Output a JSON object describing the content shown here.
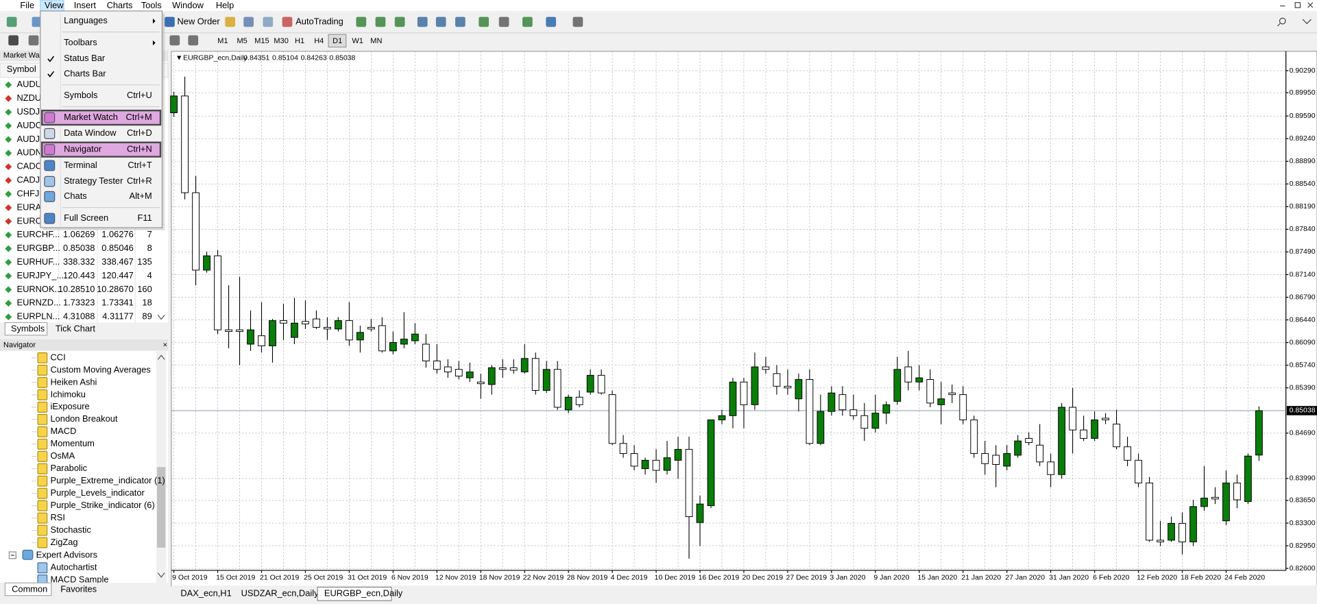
{
  "menu_bar": [
    "File",
    "View",
    "Insert",
    "Charts",
    "Tools",
    "Window",
    "Help"
  ],
  "toolbar": {
    "new_order": "New Order",
    "autotrading": "AutoTrading",
    "timeframes": [
      "M1",
      "M5",
      "M15",
      "M30",
      "H1",
      "H4",
      "D1",
      "W1",
      "MN"
    ]
  },
  "view_menu": [
    {
      "label": "Languages",
      "submenu": true
    },
    {
      "label": "Toolbars",
      "submenu": true
    },
    {
      "label": "Status Bar",
      "checked": true
    },
    {
      "label": "Charts Bar",
      "checked": true
    },
    {
      "label": "Symbols",
      "shortcut": "Ctrl+U"
    },
    {
      "label": "Market Watch",
      "shortcut": "Ctrl+M",
      "highlighted": true
    },
    {
      "label": "Data Window",
      "shortcut": "Ctrl+D"
    },
    {
      "label": "Navigator",
      "shortcut": "Ctrl+N",
      "highlighted": true
    },
    {
      "label": "Terminal",
      "shortcut": "Ctrl+T"
    },
    {
      "label": "Strategy Tester",
      "shortcut": "Ctrl+R"
    },
    {
      "label": "Chats",
      "shortcut": "Alt+M"
    },
    {
      "label": "Full Screen",
      "shortcut": "F11"
    }
  ],
  "market_watch": {
    "title": "Market Wa",
    "column": "Symbol",
    "rows": [
      {
        "cells": [
          "AUDU"
        ],
        "icon": "up"
      },
      {
        "cells": [
          "NZDU"
        ],
        "icon": "down"
      },
      {
        "cells": [
          "USDJP"
        ],
        "icon": "up"
      },
      {
        "cells": [
          "AUDC"
        ],
        "icon": "up"
      },
      {
        "cells": [
          "AUDJP"
        ],
        "icon": "up"
      },
      {
        "cells": [
          "AUDN"
        ],
        "icon": "up"
      },
      {
        "cells": [
          "CADC"
        ],
        "icon": "down"
      },
      {
        "cells": [
          "CADJP"
        ],
        "icon": "down"
      },
      {
        "cells": [
          "CHFJP"
        ],
        "icon": "up"
      },
      {
        "cells": [
          "EURAU"
        ],
        "icon": "down"
      },
      {
        "cells": [
          "EURCA"
        ],
        "icon": "down"
      },
      {
        "cells": [
          "EURCHF...",
          "1.06269",
          "1.06276",
          "7"
        ],
        "icon": "up"
      },
      {
        "cells": [
          "EURGBP...",
          "0.85038",
          "0.85046",
          "8"
        ],
        "icon": "up"
      },
      {
        "cells": [
          "EURHUF...",
          "338.332",
          "338.467",
          "135"
        ],
        "icon": "up"
      },
      {
        "cells": [
          "EURJPY_...",
          "120.443",
          "120.447",
          "4"
        ],
        "icon": "up"
      },
      {
        "cells": [
          "EURNOK...",
          "10.28510",
          "10.28670",
          "160"
        ],
        "icon": "up"
      },
      {
        "cells": [
          "EURNZD...",
          "1.73323",
          "1.73341",
          "18"
        ],
        "icon": "up"
      },
      {
        "cells": [
          "EURPLN...",
          "4.31088",
          "4.31177",
          "89"
        ],
        "icon": "up"
      }
    ],
    "tabs": [
      "Symbols",
      "Tick Chart"
    ]
  },
  "navigator": {
    "title": "Navigator",
    "indicators": [
      "CCI",
      "Custom Moving Averages",
      "Heiken Ashi",
      "Ichimoku",
      "iExposure",
      "London Breakout",
      "MACD",
      "Momentum",
      "OsMA",
      "Parabolic",
      "Purple_Extreme_indicator (1)",
      "Purple_Levels_indicator",
      "Purple_Strike_indicator (6)",
      "RSI",
      "Stochastic",
      "ZigZag"
    ],
    "folder": "Expert Advisors",
    "experts": [
      "Autochartist",
      "MACD Sample"
    ],
    "tabs": [
      "Common",
      "Favorites"
    ]
  },
  "chart_tabs": [
    "DAX_ecn,H1",
    "USDZAR_ecn,Daily",
    "EURGBP_ecn,Daily"
  ],
  "chart_data": {
    "type": "candlestick",
    "title": "EURGBP_ecn,Daily",
    "up_color": "#0a7d0a",
    "down_color": "#ffffff",
    "grid": true,
    "last_price": 0.85038,
    "last_price_label": "0.85038",
    "categories": [
      "9 Oct 2019",
      null,
      null,
      null,
      "15 Oct 2019",
      null,
      null,
      null,
      "21 Oct 2019",
      null,
      null,
      null,
      "25 Oct 2019",
      null,
      null,
      null,
      "31 Oct 2019",
      null,
      null,
      null,
      "6 Nov 2019",
      null,
      null,
      null,
      "12 Nov 2019",
      null,
      null,
      null,
      "18 Nov 2019",
      null,
      null,
      null,
      "22 Nov 2019",
      null,
      null,
      null,
      "28 Nov 2019",
      null,
      null,
      null,
      "4 Dec 2019",
      null,
      null,
      null,
      "10 Dec 2019",
      null,
      null,
      null,
      "16 Dec 2019",
      null,
      null,
      null,
      "20 Dec 2019",
      null,
      null,
      null,
      "27 Dec 2019",
      null,
      null,
      null,
      "3 Jan 2020",
      null,
      null,
      null,
      "9 Jan 2020",
      null,
      null,
      null,
      "15 Jan 2020",
      null,
      null,
      null,
      "21 Jan 2020",
      null,
      null,
      null,
      "27 Jan 2020",
      null,
      null,
      null,
      "31 Jan 2020",
      null,
      null,
      null,
      "6 Feb 2020",
      null,
      null,
      null,
      "12 Feb 2020",
      null,
      null,
      null,
      "18 Feb 2020",
      null,
      null,
      null,
      "24 Feb 2020",
      null,
      null,
      null
    ],
    "open": [
      0.8964,
      0.899,
      0.88405,
      0.87209,
      0.8743,
      0.86286,
      0.86286,
      0.86065,
      0.86195,
      0.86039,
      0.86429,
      0.86169,
      0.86416,
      0.86455,
      0.86325,
      0.86299,
      0.86429,
      0.8613,
      0.86325,
      0.86351,
      0.85961,
      0.86065,
      0.86117,
      0.86065,
      0.85805,
      0.85714,
      0.85675,
      0.85545,
      0.8548,
      0.85441,
      0.85701,
      0.85701,
      0.85636,
      0.85844,
      0.8535,
      0.85675,
      0.85051,
      0.85246,
      0.85324,
      0.85584,
      0.85285,
      0.84531,
      0.84375,
      0.84141,
      0.84271,
      0.84115,
      0.84271,
      0.8444,
      0.83309,
      0.83569,
      0.84895,
      0.8496,
      0.8548,
      0.85129,
      0.85714,
      0.8561,
      0.85415,
      0.8522,
      0.85519,
      0.84531,
      0.85025,
      0.85285,
      0.85051,
      0.8496,
      0.84765,
      0.84999,
      0.85181,
      0.85714,
      0.8548,
      0.85519,
      0.85129,
      0.85311,
      0.85285,
      0.84895,
      0.84375,
      0.84349,
      0.8418,
      0.84349,
      0.84609,
      0.84505,
      0.84245,
      0.8405,
      0.8509,
      0.84739,
      0.84609,
      0.84921,
      0.8483,
      0.84479,
      0.84271,
      0.8392,
      0.83036,
      0.83036,
      0.83296,
      0.8301,
      0.83556,
      0.83699,
      0.83335,
      0.8392,
      0.83634,
      0.84351
    ],
    "high": [
      0.89965,
      0.90199,
      0.88665,
      0.87495,
      0.87521,
      0.86975,
      0.87105,
      0.86585,
      0.86715,
      0.86455,
      0.86689,
      0.8678,
      0.86741,
      0.86585,
      0.86481,
      0.86481,
      0.86715,
      0.86351,
      0.86455,
      0.86481,
      0.8626,
      0.86559,
      0.8639,
      0.86221,
      0.86065,
      0.85831,
      0.85805,
      0.85779,
      0.8561,
      0.8574,
      0.85831,
      0.85831,
      0.86065,
      0.85935,
      0.85805,
      0.85805,
      0.85285,
      0.8535,
      0.85675,
      0.85675,
      0.8535,
      0.84661,
      0.84505,
      0.8431,
      0.8444,
      0.8457,
      0.84635,
      0.84635,
      0.83725,
      0.84895,
      0.85051,
      0.85545,
      0.85545,
      0.85935,
      0.8587,
      0.8574,
      0.85675,
      0.8561,
      0.85675,
      0.85285,
      0.85415,
      0.85415,
      0.85285,
      0.85155,
      0.85285,
      0.85181,
      0.8587,
      0.85961,
      0.8574,
      0.85675,
      0.8548,
      0.85441,
      0.85415,
      0.8496,
      0.8457,
      0.84505,
      0.84505,
      0.84661,
      0.847,
      0.8483,
      0.84375,
      0.85155,
      0.85389,
      0.8496,
      0.85025,
      0.84999,
      0.85051,
      0.84635,
      0.84375,
      0.84011,
      0.83335,
      0.834,
      0.83465,
      0.8366,
      0.8418,
      0.83855,
      0.84115,
      0.8405,
      0.84375,
      0.85104
    ],
    "low": [
      0.89575,
      0.88301,
      0.86975,
      0.8717,
      0.86221,
      0.86,
      0.8574,
      0.85961,
      0.85935,
      0.85779,
      0.8613,
      0.86065,
      0.86299,
      0.86299,
      0.8613,
      0.8626,
      0.86039,
      0.85935,
      0.8626,
      0.85935,
      0.85909,
      0.86,
      0.86065,
      0.85701,
      0.8561,
      0.85545,
      0.85519,
      0.8548,
      0.8522,
      0.85285,
      0.85545,
      0.8561,
      0.8561,
      0.85285,
      0.85311,
      0.85051,
      0.84999,
      0.8509,
      0.85285,
      0.85285,
      0.84505,
      0.8431,
      0.84115,
      0.8405,
      0.8392,
      0.8405,
      0.83985,
      0.8275,
      0.82945,
      0.8353,
      0.8483,
      0.84765,
      0.84765,
      0.85051,
      0.8561,
      0.85285,
      0.85285,
      0.85025,
      0.84505,
      0.84505,
      0.8496,
      0.8496,
      0.84895,
      0.8457,
      0.847,
      0.8483,
      0.85129,
      0.8535,
      0.8535,
      0.8509,
      0.8483,
      0.85155,
      0.8483,
      0.8431,
      0.8405,
      0.83855,
      0.84115,
      0.8431,
      0.84505,
      0.8418,
      0.83855,
      0.83985,
      0.84375,
      0.8457,
      0.8457,
      0.8483,
      0.8444,
      0.8418,
      0.83855,
      0.8301,
      0.82945,
      0.8301,
      0.82815,
      0.82945,
      0.83491,
      0.83595,
      0.8327,
      0.8353,
      0.83595,
      0.84263
    ],
    "close": [
      0.899,
      0.88405,
      0.87209,
      0.8743,
      0.86286,
      0.8626,
      0.8626,
      0.86286,
      0.86039,
      0.86429,
      0.8639,
      0.8639,
      0.86377,
      0.86325,
      0.86299,
      0.86429,
      0.8613,
      0.86247,
      0.86299,
      0.85961,
      0.86091,
      0.86143,
      0.86221,
      0.85805,
      0.85675,
      0.85636,
      0.85571,
      0.85636,
      0.85454,
      0.85701,
      0.85675,
      0.85662,
      0.85844,
      0.8535,
      0.85675,
      0.8509,
      0.85246,
      0.85129,
      0.85584,
      0.85311,
      0.84531,
      0.84375,
      0.8418,
      0.84271,
      0.84115,
      0.8431,
      0.8444,
      0.834,
      0.83595,
      0.84895,
      0.8496,
      0.8548,
      0.85129,
      0.85714,
      0.85675,
      0.85415,
      0.85389,
      0.85519,
      0.84531,
      0.85025,
      0.85311,
      0.85051,
      0.8496,
      0.84765,
      0.84999,
      0.85129,
      0.85675,
      0.8548,
      0.85545,
      0.85155,
      0.8522,
      0.85285,
      0.84895,
      0.84375,
      0.84219,
      0.84206,
      0.84375,
      0.8457,
      0.84544,
      0.84245,
      0.8405,
      0.8509,
      0.84739,
      0.84609,
      0.84895,
      0.84895,
      0.84479,
      0.84271,
      0.8392,
      0.83036,
      0.8301,
      0.83296,
      0.8301,
      0.83556,
      0.83686,
      0.83673,
      0.8392,
      0.8366,
      0.84336,
      0.85038
    ],
    "ylim": [
      0.8257,
      0.9059
    ],
    "yticks": [
      {
        "value": 0.9029,
        "label": "0.90290"
      },
      {
        "value": 0.8995,
        "label": "0.89950"
      },
      {
        "value": 0.8959,
        "label": "0.89590"
      },
      {
        "value": 0.8924,
        "label": "0.89240"
      },
      {
        "value": 0.8889,
        "label": "0.88890"
      },
      {
        "value": 0.8854,
        "label": "0.88540"
      },
      {
        "value": 0.8819,
        "label": "0.88190"
      },
      {
        "value": 0.8784,
        "label": "0.87840"
      },
      {
        "value": 0.8749,
        "label": "0.87490"
      },
      {
        "value": 0.8714,
        "label": "0.87140"
      },
      {
        "value": 0.8679,
        "label": "0.86790"
      },
      {
        "value": 0.8644,
        "label": "0.86440"
      },
      {
        "value": 0.8609,
        "label": "0.86090"
      },
      {
        "value": 0.8574,
        "label": "0.85740"
      },
      {
        "value": 0.8539,
        "label": "0.85390"
      },
      {
        "value": 0.8469,
        "label": "0.84690"
      },
      {
        "value": 0.8399,
        "label": "0.83990"
      },
      {
        "value": 0.8365,
        "label": "0.83650"
      },
      {
        "value": 0.833,
        "label": "0.83300"
      },
      {
        "value": 0.8295,
        "label": "0.82950"
      },
      {
        "value": 0.826,
        "label": "0.82600"
      }
    ]
  }
}
